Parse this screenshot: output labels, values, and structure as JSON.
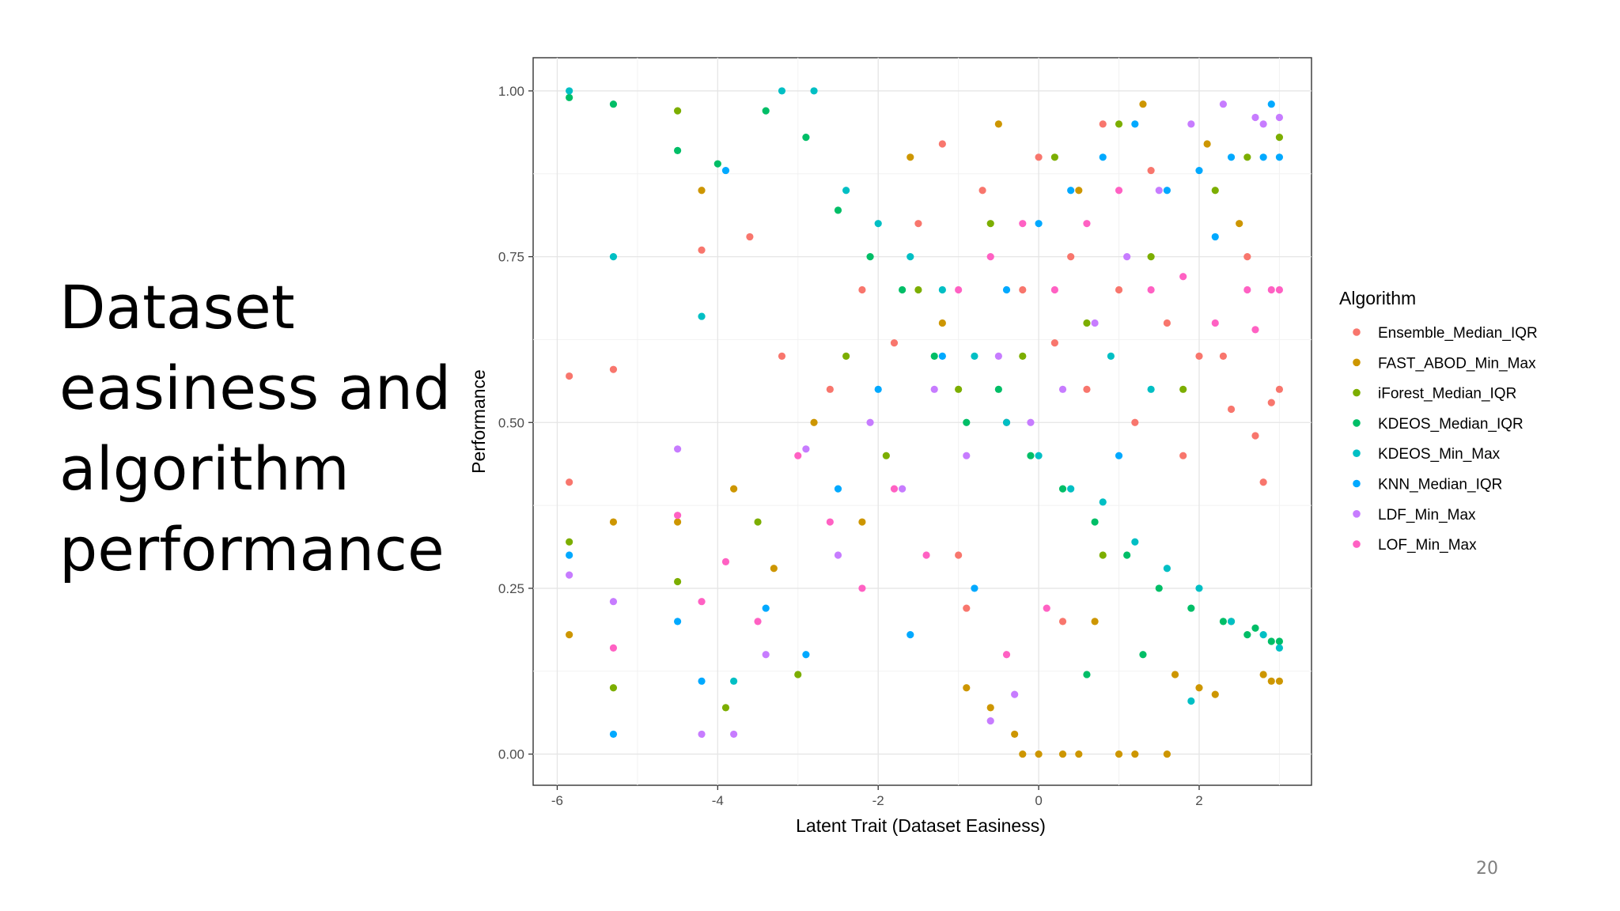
{
  "slide": {
    "title_lines": [
      "Dataset",
      "easiness and",
      "algorithm",
      "performance"
    ],
    "page_number": "20"
  },
  "chart_data": {
    "type": "scatter",
    "xlabel": "Latent Trait (Dataset Easiness)",
    "ylabel": "Performance",
    "xlim": [
      -6.3,
      3.4
    ],
    "ylim": [
      -0.047,
      1.05
    ],
    "x_ticks": [
      -6,
      -4,
      -2,
      0,
      2
    ],
    "x_tick_labels": [
      "-6",
      "-4",
      "-2",
      "0",
      "2"
    ],
    "y_ticks": [
      0,
      0.25,
      0.5,
      0.75,
      1
    ],
    "y_tick_labels": [
      "0.00",
      "0.25",
      "0.50",
      "0.75",
      "1.00"
    ],
    "grid": true,
    "legend_title": "Algorithm",
    "legend_position": "right",
    "series": [
      {
        "name": "Ensemble_Median_IQR",
        "color": "#F8766D",
        "points": [
          [
            -5.85,
            0.57
          ],
          [
            -5.85,
            0.41
          ],
          [
            -5.3,
            0.58
          ],
          [
            -4.2,
            0.76
          ],
          [
            -3.6,
            0.78
          ],
          [
            -3.2,
            0.6
          ],
          [
            -2.6,
            0.55
          ],
          [
            -2.2,
            0.7
          ],
          [
            -1.8,
            0.62
          ],
          [
            -1.5,
            0.8
          ],
          [
            -1.2,
            0.92
          ],
          [
            -1.0,
            0.3
          ],
          [
            -0.7,
            0.85
          ],
          [
            -0.4,
            0.5
          ],
          [
            -0.2,
            0.7
          ],
          [
            0.0,
            0.9
          ],
          [
            0.2,
            0.62
          ],
          [
            0.4,
            0.75
          ],
          [
            0.6,
            0.55
          ],
          [
            0.8,
            0.95
          ],
          [
            1.0,
            0.7
          ],
          [
            1.2,
            0.5
          ],
          [
            1.4,
            0.88
          ],
          [
            1.6,
            0.65
          ],
          [
            1.8,
            0.45
          ],
          [
            2.0,
            0.6
          ],
          [
            2.4,
            0.52
          ],
          [
            2.7,
            0.48
          ],
          [
            2.9,
            0.53
          ],
          [
            2.8,
            0.41
          ],
          [
            3.0,
            0.55
          ],
          [
            2.6,
            0.75
          ],
          [
            2.3,
            0.6
          ],
          [
            -0.9,
            0.22
          ],
          [
            0.3,
            0.2
          ]
        ]
      },
      {
        "name": "FAST_ABOD_Min_Max",
        "color": "#CD9600",
        "points": [
          [
            -5.85,
            0.18
          ],
          [
            -5.3,
            0.35
          ],
          [
            -4.5,
            0.35
          ],
          [
            -4.2,
            0.85
          ],
          [
            -3.8,
            0.4
          ],
          [
            -3.3,
            0.28
          ],
          [
            -2.8,
            0.5
          ],
          [
            -2.2,
            0.35
          ],
          [
            -1.6,
            0.9
          ],
          [
            -1.2,
            0.65
          ],
          [
            -0.9,
            0.1
          ],
          [
            -0.6,
            0.07
          ],
          [
            -0.3,
            0.03
          ],
          [
            -0.2,
            0.0
          ],
          [
            0.0,
            0.0
          ],
          [
            0.3,
            0.0
          ],
          [
            0.5,
            0.0
          ],
          [
            0.7,
            0.2
          ],
          [
            1.0,
            0.0
          ],
          [
            1.2,
            0.0
          ],
          [
            1.6,
            0.0
          ],
          [
            1.7,
            0.12
          ],
          [
            2.0,
            0.1
          ],
          [
            2.2,
            0.09
          ],
          [
            2.8,
            0.12
          ],
          [
            2.9,
            0.11
          ],
          [
            3.0,
            0.11
          ],
          [
            2.5,
            0.8
          ],
          [
            2.1,
            0.92
          ],
          [
            -0.5,
            0.95
          ],
          [
            0.5,
            0.85
          ],
          [
            1.3,
            0.98
          ]
        ]
      },
      {
        "name": "iForest_Median_IQR",
        "color": "#7CAE00",
        "points": [
          [
            -5.85,
            0.32
          ],
          [
            -5.3,
            0.1
          ],
          [
            -4.5,
            0.26
          ],
          [
            -4.5,
            0.97
          ],
          [
            -3.9,
            0.07
          ],
          [
            -3.5,
            0.35
          ],
          [
            -3.0,
            0.12
          ],
          [
            -2.4,
            0.6
          ],
          [
            -1.9,
            0.45
          ],
          [
            -1.5,
            0.7
          ],
          [
            -1.0,
            0.55
          ],
          [
            -0.6,
            0.8
          ],
          [
            -0.2,
            0.6
          ],
          [
            0.2,
            0.9
          ],
          [
            0.6,
            0.65
          ],
          [
            1.0,
            0.95
          ],
          [
            1.4,
            0.75
          ],
          [
            1.8,
            0.55
          ],
          [
            2.2,
            0.85
          ],
          [
            2.6,
            0.9
          ],
          [
            3.0,
            0.93
          ],
          [
            2.4,
            0.2
          ],
          [
            0.8,
            0.3
          ]
        ]
      },
      {
        "name": "KDEOS_Median_IQR",
        "color": "#00BE67",
        "points": [
          [
            -5.85,
            0.99
          ],
          [
            -5.3,
            0.98
          ],
          [
            -4.5,
            0.91
          ],
          [
            -4.0,
            0.89
          ],
          [
            -3.4,
            0.97
          ],
          [
            -2.9,
            0.93
          ],
          [
            -2.5,
            0.82
          ],
          [
            -2.1,
            0.75
          ],
          [
            -1.7,
            0.7
          ],
          [
            -1.3,
            0.6
          ],
          [
            -0.9,
            0.5
          ],
          [
            -0.5,
            0.55
          ],
          [
            -0.1,
            0.45
          ],
          [
            0.3,
            0.4
          ],
          [
            0.7,
            0.35
          ],
          [
            1.1,
            0.3
          ],
          [
            1.5,
            0.25
          ],
          [
            1.9,
            0.22
          ],
          [
            2.3,
            0.2
          ],
          [
            2.7,
            0.19
          ],
          [
            3.0,
            0.17
          ],
          [
            2.9,
            0.17
          ],
          [
            2.6,
            0.18
          ],
          [
            1.3,
            0.15
          ],
          [
            0.6,
            0.12
          ]
        ]
      },
      {
        "name": "KDEOS_Min_Max",
        "color": "#00BFC4",
        "points": [
          [
            -5.85,
            1.0
          ],
          [
            -5.3,
            0.75
          ],
          [
            -4.2,
            0.66
          ],
          [
            -3.8,
            0.11
          ],
          [
            -3.2,
            1.0
          ],
          [
            -2.8,
            1.0
          ],
          [
            -2.4,
            0.85
          ],
          [
            -2.0,
            0.8
          ],
          [
            -1.6,
            0.75
          ],
          [
            -1.2,
            0.7
          ],
          [
            -0.8,
            0.6
          ],
          [
            -0.4,
            0.5
          ],
          [
            0.0,
            0.45
          ],
          [
            0.4,
            0.4
          ],
          [
            0.8,
            0.38
          ],
          [
            1.2,
            0.32
          ],
          [
            1.6,
            0.28
          ],
          [
            2.0,
            0.25
          ],
          [
            2.4,
            0.2
          ],
          [
            2.8,
            0.18
          ],
          [
            3.0,
            0.16
          ],
          [
            1.9,
            0.08
          ],
          [
            1.4,
            0.55
          ],
          [
            0.9,
            0.6
          ]
        ]
      },
      {
        "name": "KNN_Median_IQR",
        "color": "#00A9FF",
        "points": [
          [
            -5.85,
            0.3
          ],
          [
            -5.3,
            0.03
          ],
          [
            -4.5,
            0.2
          ],
          [
            -4.2,
            0.11
          ],
          [
            -3.9,
            0.88
          ],
          [
            -3.4,
            0.22
          ],
          [
            -2.9,
            0.15
          ],
          [
            -2.5,
            0.4
          ],
          [
            -2.0,
            0.55
          ],
          [
            -1.6,
            0.18
          ],
          [
            -1.2,
            0.6
          ],
          [
            -0.8,
            0.25
          ],
          [
            -0.4,
            0.7
          ],
          [
            0.0,
            0.8
          ],
          [
            0.4,
            0.85
          ],
          [
            0.8,
            0.9
          ],
          [
            1.2,
            0.95
          ],
          [
            1.6,
            0.85
          ],
          [
            2.0,
            0.88
          ],
          [
            2.4,
            0.9
          ],
          [
            2.8,
            0.9
          ],
          [
            3.0,
            0.9
          ],
          [
            2.9,
            0.98
          ],
          [
            2.2,
            0.78
          ],
          [
            1.0,
            0.45
          ]
        ]
      },
      {
        "name": "LDF_Min_Max",
        "color": "#C77CFF",
        "points": [
          [
            -5.85,
            0.27
          ],
          [
            -5.3,
            0.23
          ],
          [
            -4.5,
            0.46
          ],
          [
            -4.2,
            0.03
          ],
          [
            -3.8,
            0.03
          ],
          [
            -3.4,
            0.15
          ],
          [
            -2.9,
            0.46
          ],
          [
            -2.5,
            0.3
          ],
          [
            -2.1,
            0.5
          ],
          [
            -1.7,
            0.4
          ],
          [
            -1.3,
            0.55
          ],
          [
            -0.9,
            0.45
          ],
          [
            -0.5,
            0.6
          ],
          [
            -0.1,
            0.5
          ],
          [
            0.3,
            0.55
          ],
          [
            0.7,
            0.65
          ],
          [
            1.1,
            0.75
          ],
          [
            1.5,
            0.85
          ],
          [
            1.9,
            0.95
          ],
          [
            2.3,
            0.98
          ],
          [
            2.7,
            0.96
          ],
          [
            3.0,
            0.96
          ],
          [
            2.8,
            0.95
          ],
          [
            -0.6,
            0.05
          ],
          [
            -0.3,
            0.09
          ]
        ]
      },
      {
        "name": "LOF_Min_Max",
        "color": "#FF61C3",
        "points": [
          [
            -5.3,
            0.16
          ],
          [
            -4.5,
            0.36
          ],
          [
            -4.2,
            0.23
          ],
          [
            -3.9,
            0.29
          ],
          [
            -3.5,
            0.2
          ],
          [
            -3.0,
            0.45
          ],
          [
            -2.6,
            0.35
          ],
          [
            -2.2,
            0.25
          ],
          [
            -1.8,
            0.4
          ],
          [
            -1.4,
            0.3
          ],
          [
            -1.0,
            0.7
          ],
          [
            -0.6,
            0.75
          ],
          [
            -0.2,
            0.8
          ],
          [
            0.2,
            0.7
          ],
          [
            0.6,
            0.8
          ],
          [
            1.0,
            0.85
          ],
          [
            1.4,
            0.7
          ],
          [
            1.8,
            0.72
          ],
          [
            2.2,
            0.65
          ],
          [
            2.6,
            0.7
          ],
          [
            2.9,
            0.7
          ],
          [
            3.0,
            0.7
          ],
          [
            2.7,
            0.64
          ],
          [
            -0.4,
            0.15
          ],
          [
            0.1,
            0.22
          ]
        ]
      }
    ]
  }
}
